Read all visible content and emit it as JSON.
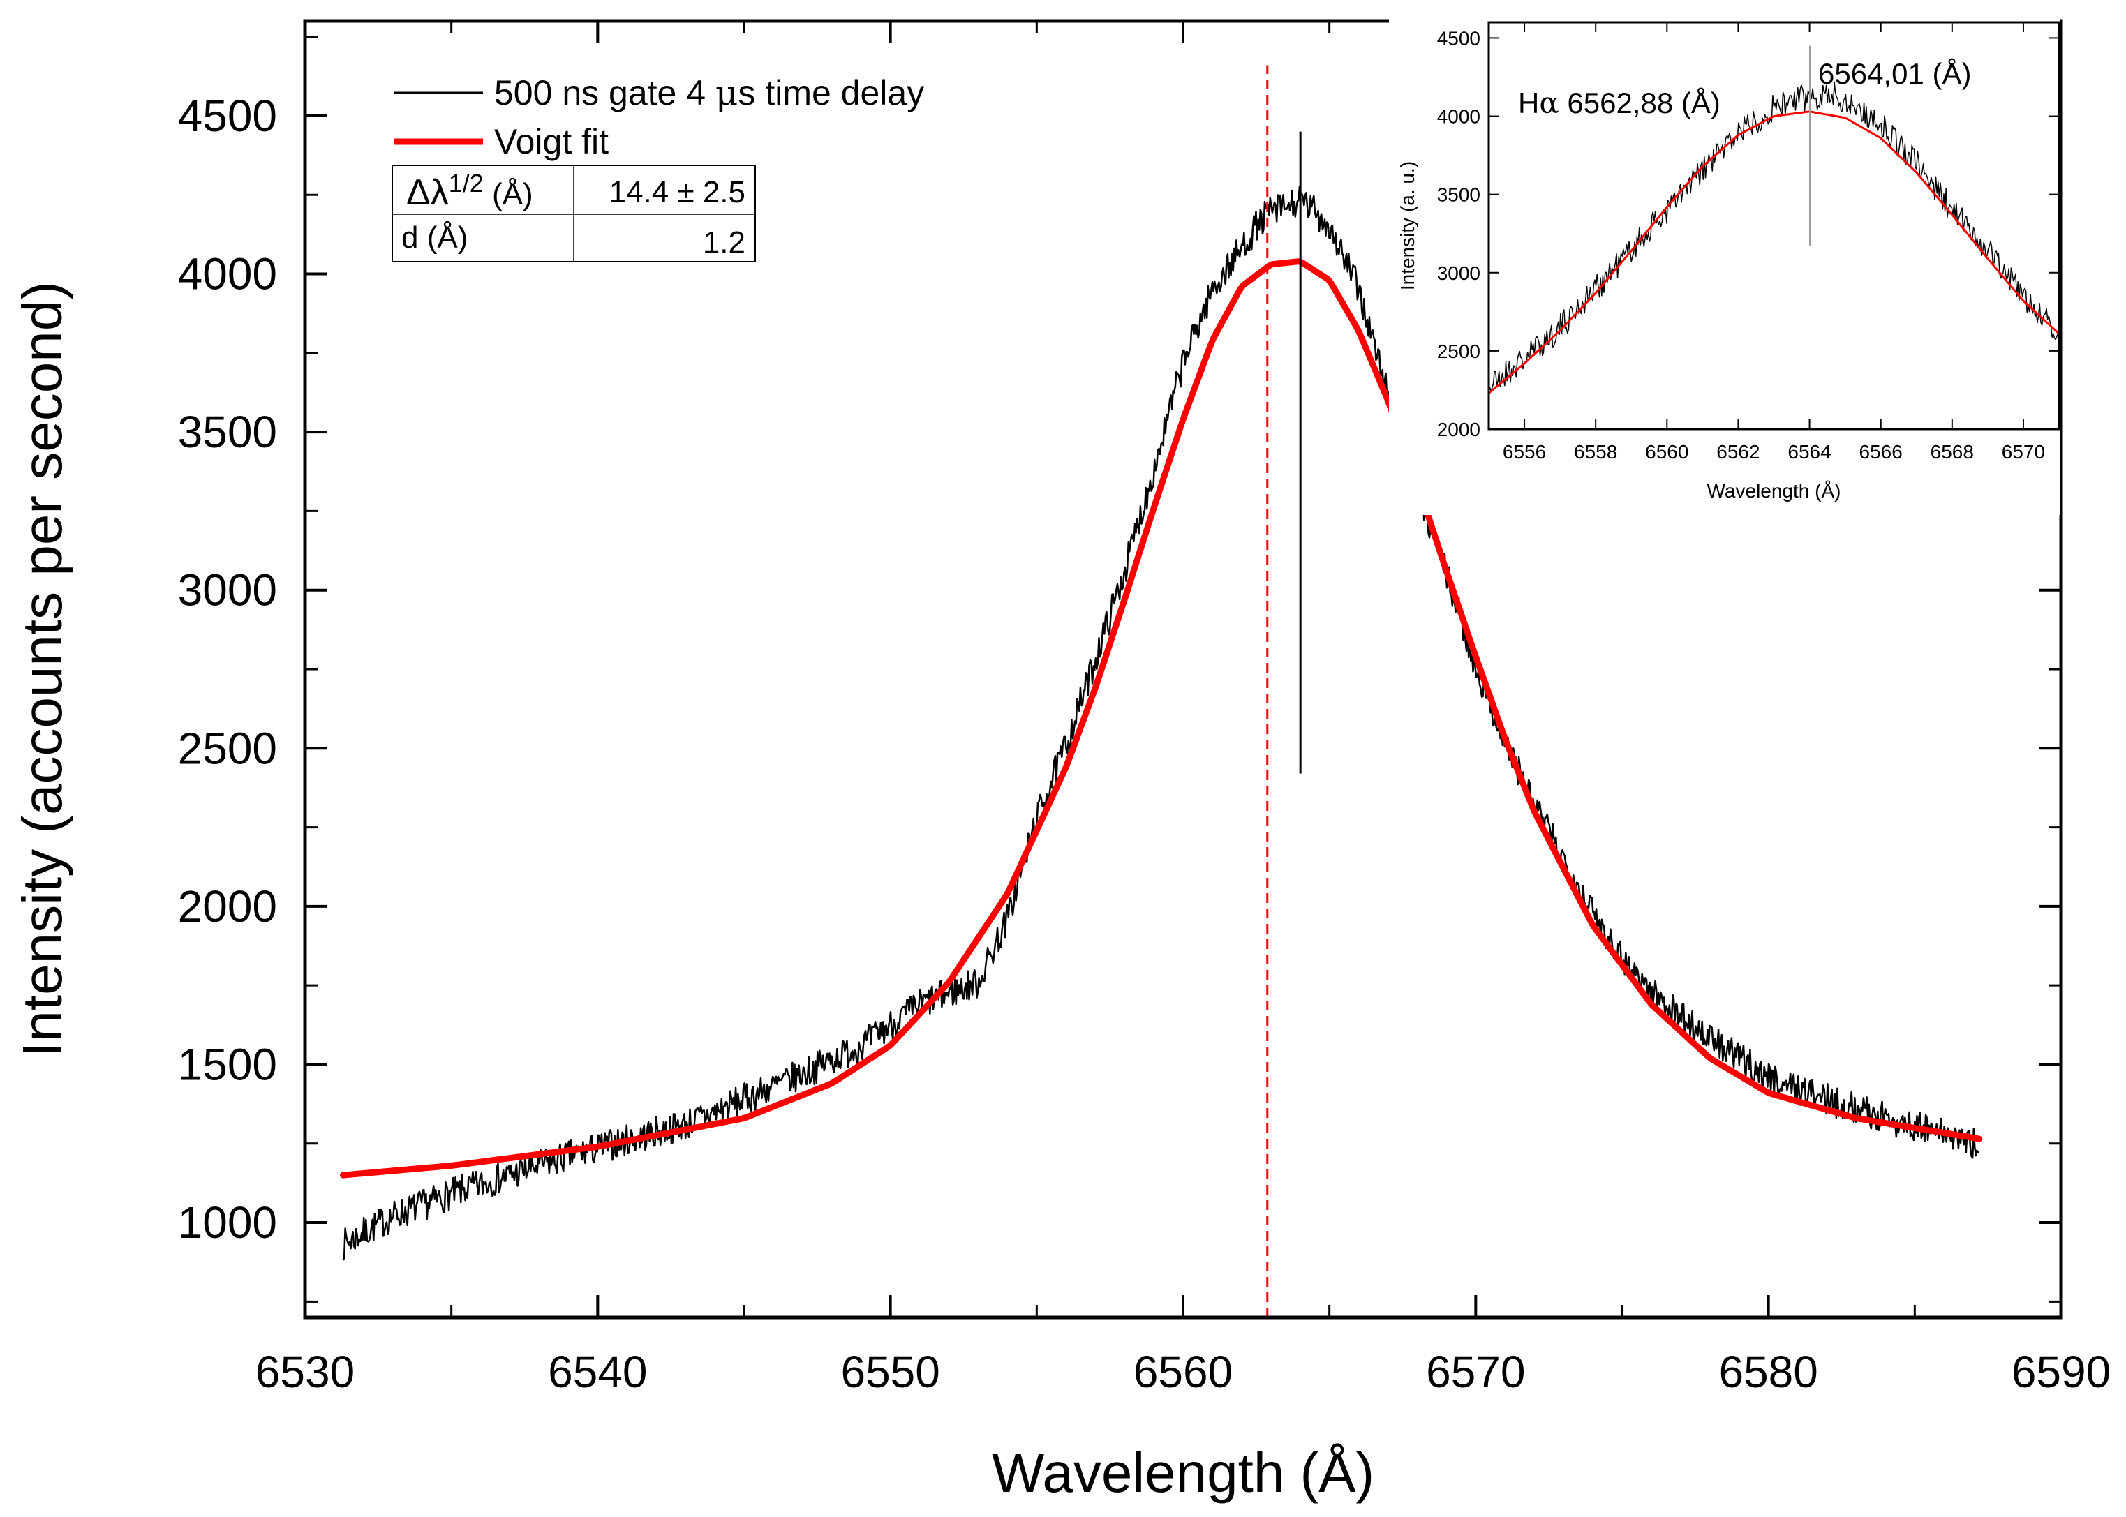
{
  "chart_data": [
    {
      "type": "line",
      "title": "",
      "xlabel": "Wavelength (Å)",
      "ylabel": "Intensity (accounts per second)",
      "xlim": [
        6530,
        6590
      ],
      "ylim": [
        700,
        4800
      ],
      "xticks": [
        6530,
        6540,
        6550,
        6560,
        6570,
        6580,
        6590
      ],
      "yticks": [
        1000,
        1500,
        2000,
        2500,
        3000,
        3500,
        4000,
        4500
      ],
      "grid": false,
      "legend_position": "top-left",
      "series": [
        {
          "name": "500 ns gate 4 µs time delay",
          "color": "#000000",
          "style": "thin noisy line",
          "x": [
            6531.3,
            6533,
            6535,
            6537,
            6539,
            6541,
            6543,
            6545,
            6547,
            6549,
            6551,
            6553,
            6554,
            6555,
            6556,
            6557,
            6558,
            6559,
            6560,
            6561,
            6562,
            6562.5,
            6563,
            6563.5,
            6564,
            6564.5,
            6565,
            6565.5,
            6566,
            6567,
            6568,
            6569,
            6570,
            6571,
            6572,
            6573,
            6574,
            6575,
            6576,
            6578,
            6580,
            6582,
            6584,
            6586,
            6587.2
          ],
          "y": [
            930,
            1020,
            1090,
            1150,
            1210,
            1260,
            1310,
            1390,
            1470,
            1560,
            1690,
            1760,
            1960,
            2280,
            2510,
            2780,
            3060,
            3380,
            3720,
            3950,
            4080,
            4150,
            4200,
            4210,
            4230,
            4200,
            4150,
            4050,
            3950,
            3620,
            3320,
            3050,
            2760,
            2520,
            2320,
            2150,
            1980,
            1840,
            1730,
            1580,
            1460,
            1390,
            1330,
            1280,
            1240
          ]
        },
        {
          "name": "Voigt fit",
          "color": "#ff0000",
          "style": "thick smooth line",
          "x": [
            6531.3,
            6535,
            6540,
            6545,
            6548,
            6550,
            6552,
            6554,
            6556,
            6557,
            6558,
            6559,
            6560,
            6561,
            6562,
            6563,
            6564,
            6565,
            6566,
            6567,
            6568,
            6569,
            6570,
            6571,
            6572,
            6574,
            6576,
            6578,
            6580,
            6583,
            6587.2
          ],
          "y": [
            1150,
            1180,
            1240,
            1330,
            1440,
            1560,
            1760,
            2040,
            2440,
            2690,
            2970,
            3260,
            3540,
            3790,
            3960,
            4030,
            4040,
            3980,
            3820,
            3600,
            3340,
            3060,
            2790,
            2530,
            2300,
            1940,
            1690,
            1520,
            1410,
            1330,
            1265
          ]
        }
      ],
      "markers": [
        {
          "x": 6562.88,
          "color": "#ff0000",
          "style": "dashed vertical line"
        },
        {
          "x": 6564.01,
          "y_from": 2420,
          "y_to": 4450,
          "color": "#000000",
          "style": "solid vertical line"
        }
      ],
      "legend": {
        "entries": [
          {
            "label_before": "500 ns gate 4 ",
            "label_mu": "μ",
            "label_after": "s time delay",
            "color": "#000000"
          },
          {
            "label": "Voigt fit",
            "color": "#ff0000"
          }
        ]
      },
      "fit_table": {
        "rows": [
          {
            "param_main": "Δλ",
            "param_sup": "1/2",
            "param_unit": " (Å)",
            "value": "14.4 ± 2.5"
          },
          {
            "param": "d (Å)",
            "value": "1.2"
          }
        ]
      }
    },
    {
      "type": "line",
      "title": "",
      "xlabel": "Wavelength (Å)",
      "ylabel": "Intensity (a. u.)",
      "xlim": [
        6555,
        6571
      ],
      "ylim": [
        2000,
        4600
      ],
      "xticks": [
        6556,
        6558,
        6560,
        6562,
        6564,
        6566,
        6568,
        6570
      ],
      "yticks": [
        2000,
        2500,
        3000,
        3500,
        4000,
        4500
      ],
      "grid": false,
      "series": [
        {
          "name": "",
          "color": "#000000",
          "style": "thin noisy line",
          "x": [
            6555,
            6556,
            6557,
            6558,
            6559,
            6560,
            6561,
            6562,
            6563,
            6563.5,
            6564,
            6564.5,
            6565,
            6566,
            6567,
            6568,
            6569,
            6570,
            6571
          ],
          "y": [
            2270,
            2450,
            2650,
            2900,
            3150,
            3400,
            3650,
            3900,
            4050,
            4100,
            4120,
            4150,
            4100,
            3950,
            3700,
            3400,
            3150,
            2850,
            2600
          ]
        },
        {
          "name": "",
          "color": "#ff0000",
          "style": "thin smooth line",
          "x": [
            6555,
            6556,
            6557,
            6558,
            6559,
            6560,
            6561,
            6562,
            6563,
            6564,
            6565,
            6566,
            6567,
            6568,
            6569,
            6570,
            6571
          ],
          "y": [
            2230,
            2420,
            2630,
            2870,
            3140,
            3420,
            3680,
            3880,
            4000,
            4030,
            3990,
            3860,
            3640,
            3370,
            3090,
            2820,
            2610
          ]
        }
      ],
      "markers": [
        {
          "x": 6564.01,
          "y_from": 3170,
          "y_to": 4450,
          "color": "#999999",
          "style": "thin vertical line"
        }
      ],
      "annotations": [
        {
          "text_main": "H",
          "text_sub": "α",
          "text_rest": " 6562,88 (Å)"
        },
        {
          "text": "6564,01 (Å)"
        }
      ]
    }
  ]
}
